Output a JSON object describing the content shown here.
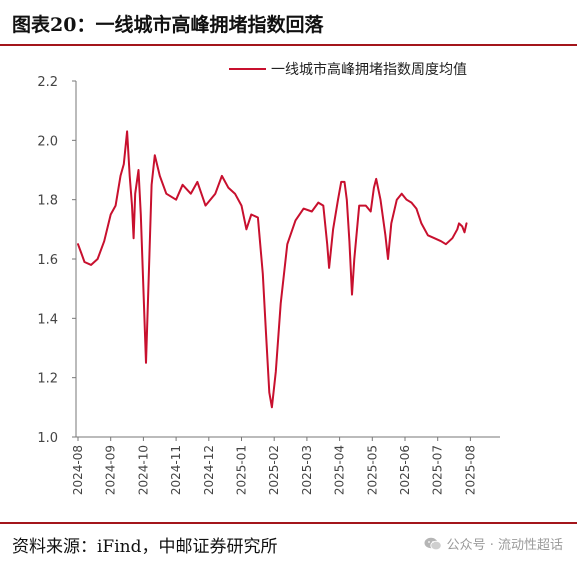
{
  "header": {
    "title": "图表20：一线城市高峰拥堵指数回落"
  },
  "chart_data": {
    "type": "line",
    "title": "",
    "xlabel": "",
    "ylabel": "",
    "ylim": [
      1.0,
      2.2
    ],
    "yticks": [
      "1.0",
      "1.2",
      "1.4",
      "1.6",
      "1.8",
      "2.0",
      "2.2"
    ],
    "xticks": [
      "2024-08",
      "2024-09",
      "2024-10",
      "2024-11",
      "2024-12",
      "2025-01",
      "2025-02",
      "2025-03",
      "2025-04",
      "2025-05",
      "2025-06",
      "2025-07",
      "2025-08"
    ],
    "grid": false,
    "legend_position": "top-right",
    "colors": {
      "line": "#c8102e",
      "axis": "#777777",
      "text": "#444444"
    },
    "series": [
      {
        "name": "一线城市高峰拥堵指数周度均值",
        "points": [
          [
            0.0,
            1.65
          ],
          [
            0.1,
            1.62
          ],
          [
            0.2,
            1.59
          ],
          [
            0.4,
            1.58
          ],
          [
            0.6,
            1.6
          ],
          [
            0.8,
            1.66
          ],
          [
            1.0,
            1.75
          ],
          [
            1.15,
            1.78
          ],
          [
            1.3,
            1.88
          ],
          [
            1.4,
            1.92
          ],
          [
            1.5,
            2.03
          ],
          [
            1.58,
            1.88
          ],
          [
            1.65,
            1.78
          ],
          [
            1.7,
            1.67
          ],
          [
            1.75,
            1.82
          ],
          [
            1.85,
            1.9
          ],
          [
            1.92,
            1.75
          ],
          [
            2.0,
            1.5
          ],
          [
            2.08,
            1.25
          ],
          [
            2.18,
            1.6
          ],
          [
            2.25,
            1.85
          ],
          [
            2.35,
            1.95
          ],
          [
            2.5,
            1.88
          ],
          [
            2.7,
            1.82
          ],
          [
            3.0,
            1.8
          ],
          [
            3.2,
            1.85
          ],
          [
            3.45,
            1.82
          ],
          [
            3.65,
            1.86
          ],
          [
            3.9,
            1.78
          ],
          [
            4.2,
            1.82
          ],
          [
            4.4,
            1.88
          ],
          [
            4.6,
            1.84
          ],
          [
            4.8,
            1.82
          ],
          [
            5.0,
            1.78
          ],
          [
            5.15,
            1.7
          ],
          [
            5.3,
            1.75
          ],
          [
            5.5,
            1.74
          ],
          [
            5.65,
            1.55
          ],
          [
            5.75,
            1.35
          ],
          [
            5.85,
            1.15
          ],
          [
            5.93,
            1.1
          ],
          [
            6.05,
            1.22
          ],
          [
            6.2,
            1.45
          ],
          [
            6.4,
            1.65
          ],
          [
            6.65,
            1.73
          ],
          [
            6.9,
            1.77
          ],
          [
            7.15,
            1.76
          ],
          [
            7.35,
            1.79
          ],
          [
            7.5,
            1.78
          ],
          [
            7.62,
            1.65
          ],
          [
            7.68,
            1.57
          ],
          [
            7.8,
            1.7
          ],
          [
            7.95,
            1.8
          ],
          [
            8.05,
            1.86
          ],
          [
            8.15,
            1.86
          ],
          [
            8.22,
            1.8
          ],
          [
            8.3,
            1.66
          ],
          [
            8.38,
            1.48
          ],
          [
            8.45,
            1.6
          ],
          [
            8.6,
            1.78
          ],
          [
            8.8,
            1.78
          ],
          [
            8.95,
            1.76
          ],
          [
            9.05,
            1.84
          ],
          [
            9.12,
            1.87
          ],
          [
            9.25,
            1.8
          ],
          [
            9.4,
            1.68
          ],
          [
            9.48,
            1.6
          ],
          [
            9.58,
            1.72
          ],
          [
            9.75,
            1.8
          ],
          [
            9.9,
            1.82
          ],
          [
            10.05,
            1.8
          ],
          [
            10.2,
            1.79
          ],
          [
            10.35,
            1.77
          ],
          [
            10.5,
            1.72
          ],
          [
            10.7,
            1.68
          ],
          [
            10.9,
            1.67
          ],
          [
            11.1,
            1.66
          ],
          [
            11.25,
            1.65
          ],
          [
            11.45,
            1.67
          ],
          [
            11.6,
            1.7
          ],
          [
            11.65,
            1.72
          ],
          [
            11.75,
            1.71
          ],
          [
            11.82,
            1.69
          ],
          [
            11.88,
            1.72
          ]
        ]
      }
    ]
  },
  "footer": {
    "source": "资料来源：iFind，中邮证券研究所",
    "watermark": "公众号 · 流动性超话"
  }
}
